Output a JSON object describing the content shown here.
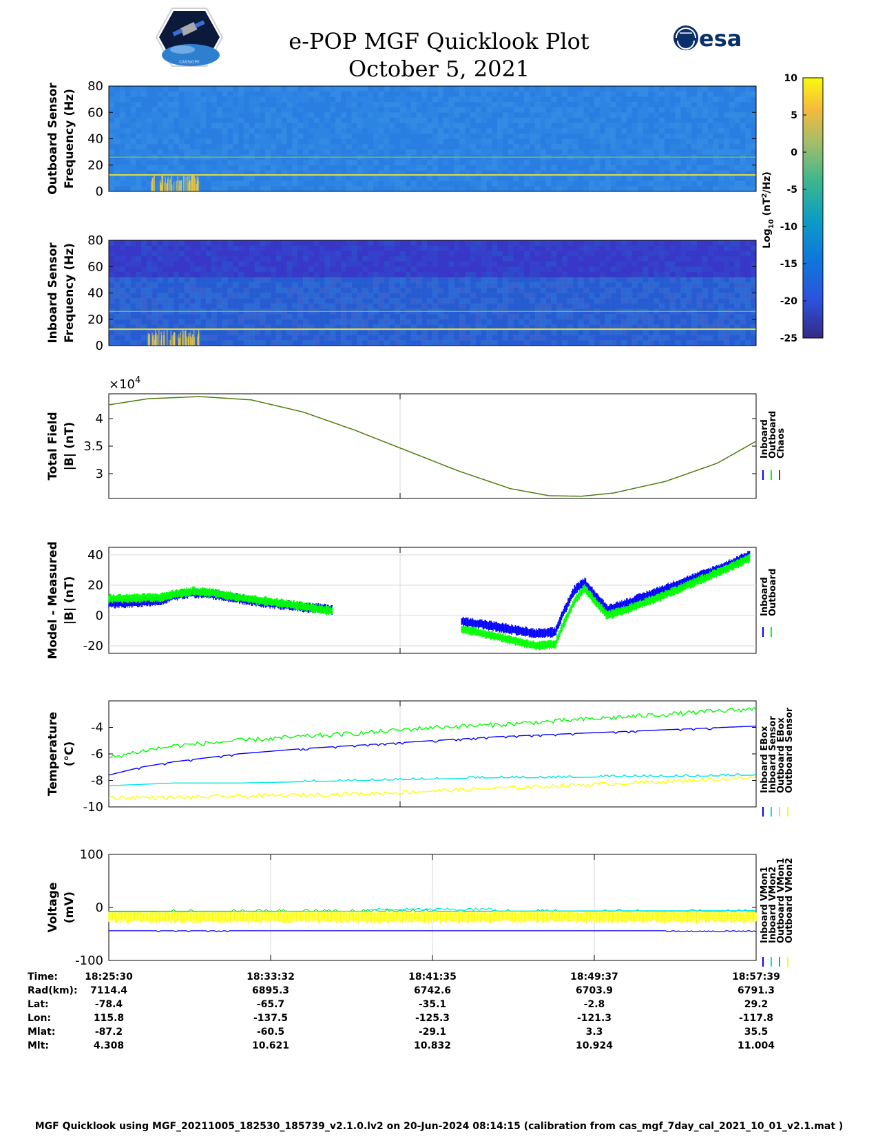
{
  "header": {
    "title": "e-POP MGF Quicklook Plot",
    "date": "October 5, 2021",
    "esa_logo_text": "esa",
    "cassiope_logo_text": "CASSIOPE"
  },
  "colors": {
    "inboard": "#0000ff",
    "outboard": "#00ff00",
    "chaos": "#ff0000",
    "cyan": "#00e5e5",
    "yellow": "#ffff00",
    "grid": "#d9d9d9"
  },
  "chart_data": [
    {
      "type": "heatmap",
      "id": "outboard-spectrogram",
      "ylabel": [
        "Outboard Sensor",
        "Frequency (Hz)"
      ],
      "ylim": [
        0,
        80
      ],
      "yticks": [
        0,
        20,
        40,
        60,
        80
      ],
      "horizontal_lines_hz": [
        12.5,
        26
      ],
      "feature": "burst of high power near 0-12 Hz around 18:27"
    },
    {
      "type": "heatmap",
      "id": "inboard-spectrogram",
      "ylabel": [
        "Inboard Sensor",
        "Frequency (Hz)"
      ],
      "ylim": [
        0,
        80
      ],
      "yticks": [
        0,
        20,
        40,
        60,
        80
      ],
      "horizontal_lines_hz": [
        12.5,
        26
      ],
      "feature": "burst of high power near 0-12 Hz around 18:27"
    },
    {
      "type": "colorbar",
      "id": "colorbar",
      "label": "Log10 (nT2/Hz)",
      "label_parts": {
        "base": "Log",
        "sub": "10",
        "open": " (nT",
        "sup": "2",
        "close": "/Hz)"
      },
      "ticks": [
        10,
        5,
        0,
        -5,
        -10,
        -15,
        -20,
        -25
      ],
      "range": [
        -25,
        10
      ],
      "colormap": "parula"
    },
    {
      "type": "line",
      "id": "total-field",
      "ylabel": [
        "Total Field",
        "|B| (nT)"
      ],
      "ylim": [
        25500,
        44500
      ],
      "yticks": [
        30000,
        35000,
        40000
      ],
      "ytick_labels": [
        "3",
        "3.5",
        "4"
      ],
      "multiplier": "×10",
      "multiplier_exp": "4",
      "legend": [
        "Inboard",
        "Outboard",
        "Chaos"
      ],
      "series": [
        {
          "name": "Inboard",
          "x": [
            0,
            0.06,
            0.14,
            0.22,
            0.3,
            0.38,
            0.46,
            0.54,
            0.62,
            0.68,
            0.73,
            0.78,
            0.86,
            0.94,
            1.0
          ],
          "values": [
            42500,
            43600,
            44000,
            43400,
            41200,
            37900,
            34200,
            30500,
            27300,
            26000,
            25900,
            26500,
            28600,
            31900,
            35900
          ]
        },
        {
          "name": "Outboard",
          "x": [
            0,
            0.06,
            0.14,
            0.22,
            0.3,
            0.38,
            0.46,
            0.54,
            0.62,
            0.68,
            0.73,
            0.78,
            0.86,
            0.94,
            1.0
          ],
          "values": [
            42500,
            43600,
            44000,
            43400,
            41200,
            37900,
            34200,
            30500,
            27300,
            26000,
            25900,
            26500,
            28600,
            31900,
            35900
          ]
        },
        {
          "name": "Chaos",
          "x": [
            0,
            0.06,
            0.14,
            0.22,
            0.3,
            0.38,
            0.46,
            0.54,
            0.62,
            0.68,
            0.73,
            0.78,
            0.86,
            0.94,
            1.0
          ],
          "values": [
            42500,
            43600,
            44000,
            43400,
            41200,
            37900,
            34200,
            30500,
            27300,
            26000,
            25900,
            26500,
            28600,
            31900,
            35900
          ]
        }
      ]
    },
    {
      "type": "line",
      "id": "model-measured",
      "ylabel": [
        "Model - Measured",
        "|B| (nT)"
      ],
      "ylim": [
        -25,
        45
      ],
      "yticks": [
        -20,
        0,
        20,
        40
      ],
      "legend": [
        "Inboard",
        "Outboard"
      ],
      "series": [
        {
          "name": "Inboard",
          "segments": [
            {
              "x": [
                0,
                0.04,
                0.08,
                0.1,
                0.13,
                0.16,
                0.2,
                0.25,
                0.3,
                0.345
              ],
              "values": [
                8,
                8.5,
                10,
                13,
                15,
                14,
                11,
                8,
                5.5,
                4
              ]
            },
            {
              "x": [
                0.545,
                0.58,
                0.62,
                0.66,
                0.69,
                0.7,
                0.72,
                0.735,
                0.75,
                0.77,
                0.8,
                0.85,
                0.9,
                0.95,
                0.99
              ],
              "values": [
                -4,
                -6,
                -9,
                -12,
                -11,
                0,
                17,
                22,
                14,
                4,
                8,
                16,
                24,
                32,
                40
              ]
            }
          ]
        },
        {
          "name": "Outboard",
          "segments": [
            {
              "x": [
                0,
                0.04,
                0.08,
                0.1,
                0.13,
                0.16,
                0.2,
                0.25,
                0.3,
                0.345
              ],
              "values": [
                11,
                11.5,
                12,
                14,
                16,
                15,
                12,
                9,
                6,
                3
              ]
            },
            {
              "x": [
                0.545,
                0.58,
                0.62,
                0.66,
                0.69,
                0.7,
                0.72,
                0.735,
                0.75,
                0.77,
                0.8,
                0.85,
                0.9,
                0.95,
                0.99
              ],
              "values": [
                -9,
                -12,
                -16,
                -20,
                -19,
                -8,
                10,
                18,
                10,
                0,
                4,
                12,
                21,
                30,
                38
              ]
            }
          ]
        }
      ]
    },
    {
      "type": "line",
      "id": "temperature",
      "ylabel": [
        "Temperature",
        "(°C)"
      ],
      "ylim": [
        -10,
        -2
      ],
      "yticks": [
        -10,
        -8,
        -6,
        -4
      ],
      "legend": [
        "Inboard EBox",
        "Inboard Sensor",
        "Outboard EBox",
        "Outboard Sensor"
      ],
      "series": [
        {
          "name": "Inboard EBox",
          "x": [
            0,
            0.05,
            0.1,
            0.2,
            0.3,
            0.4,
            0.5,
            0.6,
            0.7,
            0.8,
            0.9,
            1.0
          ],
          "values": [
            -6.3,
            -5.8,
            -5.4,
            -5.0,
            -4.7,
            -4.4,
            -4.0,
            -3.8,
            -3.5,
            -3.2,
            -2.9,
            -2.6
          ]
        },
        {
          "name": "Inboard Sensor",
          "x": [
            0,
            0.05,
            0.1,
            0.2,
            0.3,
            0.4,
            0.5,
            0.6,
            0.7,
            0.8,
            0.9,
            1.0
          ],
          "values": [
            -7.6,
            -7.0,
            -6.6,
            -6.0,
            -5.6,
            -5.3,
            -5.0,
            -4.7,
            -4.5,
            -4.3,
            -4.1,
            -3.9
          ]
        },
        {
          "name": "Outboard EBox",
          "x": [
            0,
            0.05,
            0.1,
            0.2,
            0.3,
            0.4,
            0.5,
            0.6,
            0.7,
            0.8,
            0.9,
            1.0
          ],
          "values": [
            -8.4,
            -8.3,
            -8.2,
            -8.2,
            -8.1,
            -8.0,
            -7.9,
            -7.8,
            -7.8,
            -7.7,
            -7.7,
            -7.6
          ]
        },
        {
          "name": "Outboard Sensor",
          "x": [
            0,
            0.05,
            0.1,
            0.2,
            0.3,
            0.4,
            0.5,
            0.6,
            0.7,
            0.8,
            0.9,
            1.0
          ],
          "values": [
            -9.3,
            -9.3,
            -9.3,
            -9.2,
            -9.1,
            -9.0,
            -8.8,
            -8.6,
            -8.4,
            -8.2,
            -8.0,
            -7.8
          ]
        }
      ]
    },
    {
      "type": "line",
      "id": "voltage",
      "ylabel": [
        "Voltage",
        "(mV)"
      ],
      "ylim": [
        -100,
        100
      ],
      "yticks": [
        -100,
        0,
        100
      ],
      "legend": [
        "Inboard VMon1",
        "Inboard VMon2",
        "Outboard VMon1",
        "Outboard VMon2"
      ],
      "series": [
        {
          "name": "Inboard VMon1",
          "x": [
            0,
            1
          ],
          "values": [
            -44,
            -44
          ]
        },
        {
          "name": "Inboard VMon2",
          "x": [
            0,
            1
          ],
          "values": [
            -8,
            -6
          ]
        },
        {
          "name": "Outboard VMon1",
          "x": [
            0,
            1
          ],
          "values": [
            -7,
            -7
          ]
        },
        {
          "name": "Outboard VMon2",
          "x": [
            0,
            1
          ],
          "values": [
            -18,
            -18
          ]
        }
      ]
    }
  ],
  "footer": {
    "rows": [
      {
        "key": "Time:",
        "values": [
          "18:25:30",
          "18:33:32",
          "18:41:35",
          "18:49:37",
          "18:57:39"
        ]
      },
      {
        "key": "Rad(km):",
        "values": [
          "7114.4",
          "6895.3",
          "6742.6",
          "6703.9",
          "6791.3"
        ]
      },
      {
        "key": "Lat:",
        "values": [
          "-78.4",
          "-65.7",
          "-35.1",
          "-2.8",
          "29.2"
        ]
      },
      {
        "key": "Lon:",
        "values": [
          "115.8",
          "-137.5",
          "-125.3",
          "-121.3",
          "-117.8"
        ]
      },
      {
        "key": "Mlat:",
        "values": [
          "-87.2",
          "-60.5",
          "-29.1",
          "3.3",
          "35.5"
        ]
      },
      {
        "key": "Mlt:",
        "values": [
          "4.308",
          "10.621",
          "10.832",
          "10.924",
          "11.004"
        ]
      }
    ],
    "note": "MGF Quicklook using MGF_20211005_182530_185739_v2.1.0.lv2 on 20-Jun-2024 08:14:15 (calibration from cas_mgf_7day_cal_2021_10_01_v2.1.mat )"
  }
}
